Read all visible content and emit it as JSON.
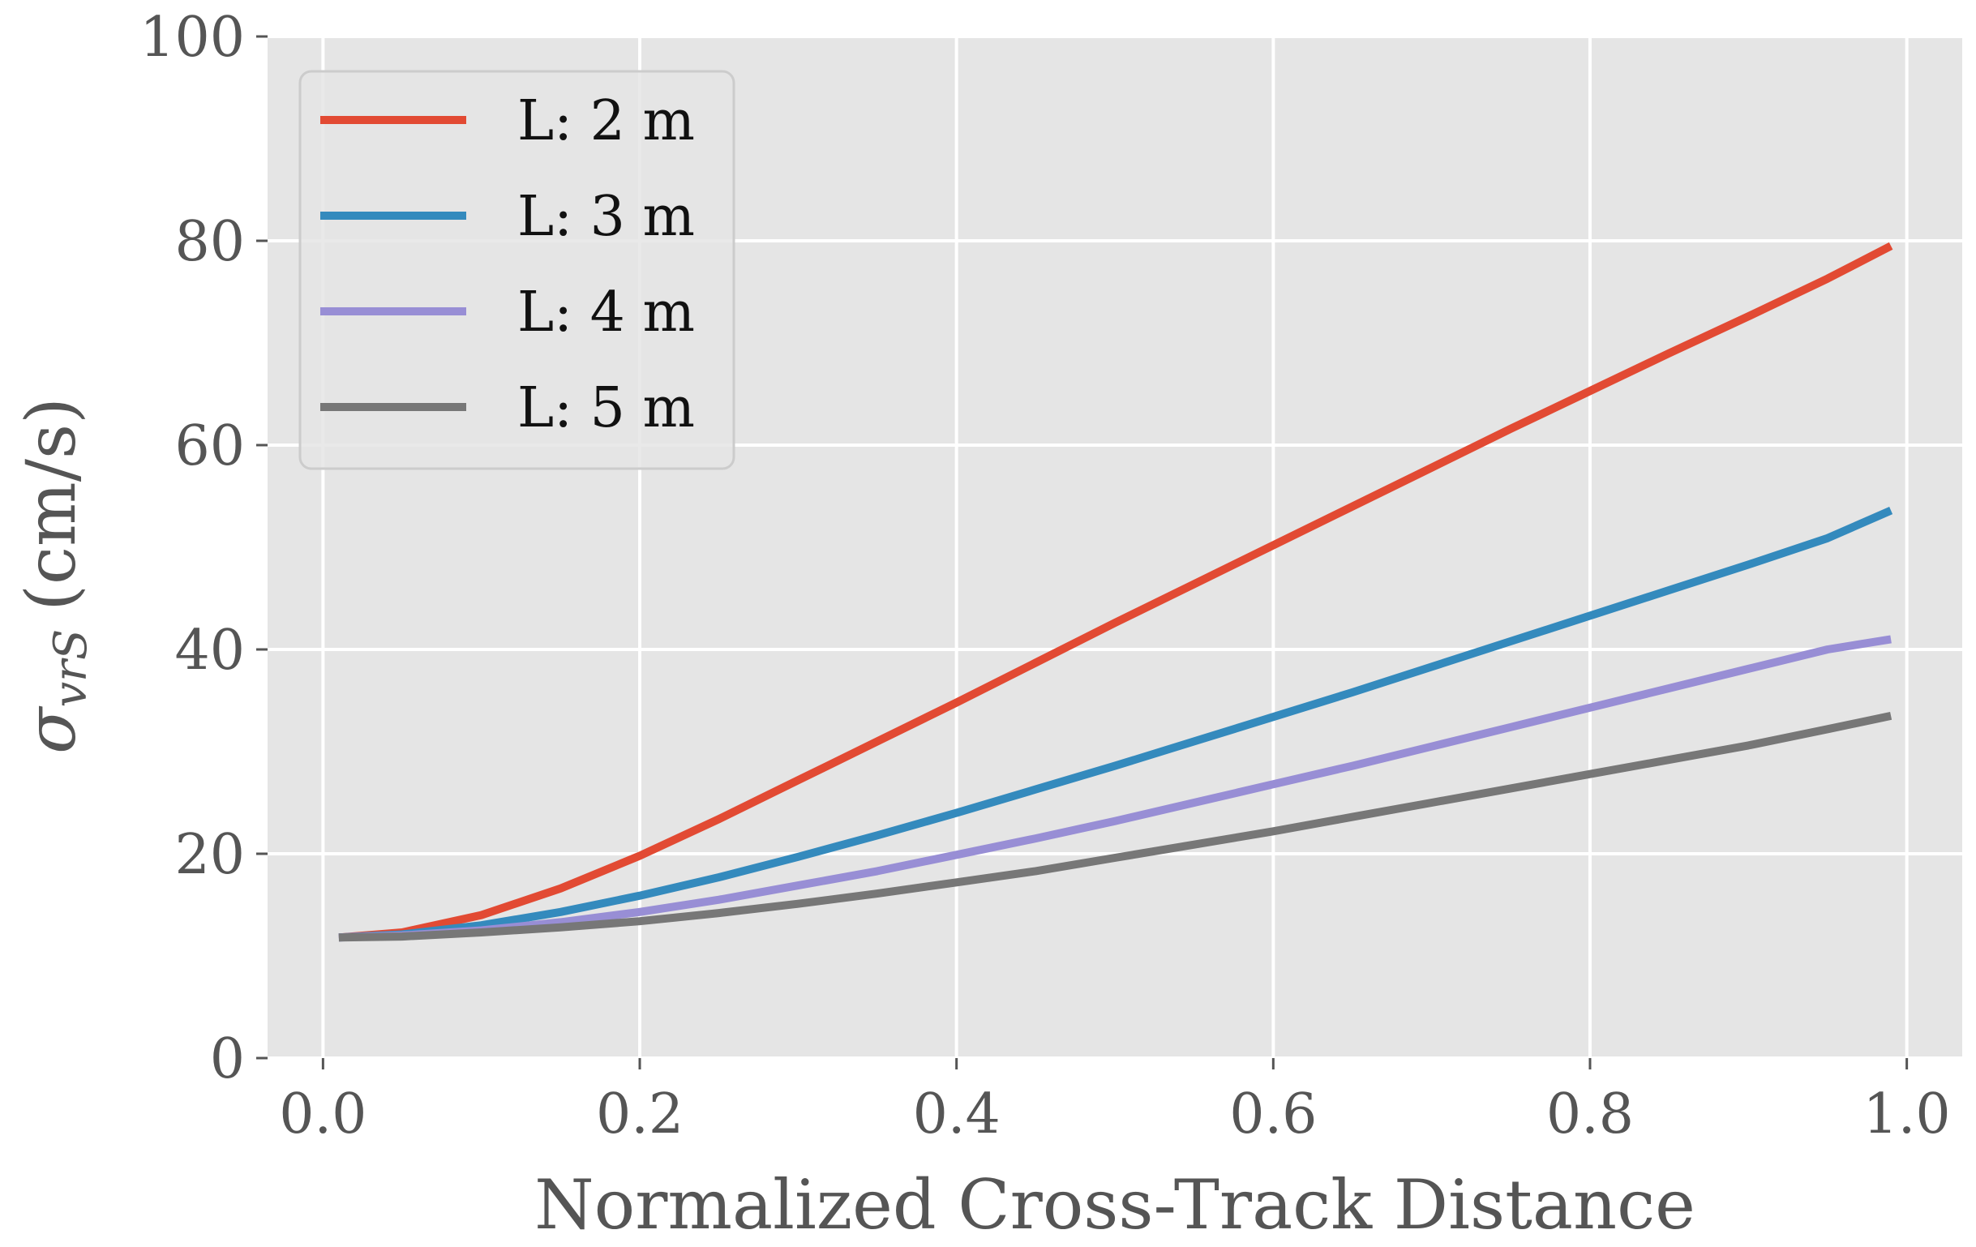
{
  "chart_data": {
    "type": "line",
    "title": "",
    "xlabel": "Normalized Cross-Track Distance",
    "ylabel": {
      "symbol": "σ",
      "subscript": "vrS",
      "unit": "(cm/s)"
    },
    "xlim": [
      -0.035,
      1.035
    ],
    "ylim": [
      0,
      100
    ],
    "xticks": [
      0.0,
      0.2,
      0.4,
      0.6,
      0.8,
      1.0
    ],
    "xtick_labels": [
      "0.0",
      "0.2",
      "0.4",
      "0.6",
      "0.8",
      "1.0"
    ],
    "yticks": [
      0,
      20,
      40,
      60,
      80,
      100
    ],
    "ytick_labels": [
      "0",
      "20",
      "40",
      "60",
      "80",
      "100"
    ],
    "grid": true,
    "legend_position": "top-left",
    "x": [
      0.01,
      0.05,
      0.1,
      0.15,
      0.2,
      0.25,
      0.3,
      0.35,
      0.4,
      0.45,
      0.5,
      0.55,
      0.6,
      0.65,
      0.7,
      0.75,
      0.8,
      0.85,
      0.9,
      0.95,
      0.99
    ],
    "series": [
      {
        "name": "L: 2 m",
        "color": "#e24a33",
        "values": [
          11.8,
          12.3,
          14.0,
          16.6,
          19.8,
          23.4,
          27.2,
          31.0,
          34.8,
          38.7,
          42.6,
          46.4,
          50.2,
          54.0,
          57.8,
          61.6,
          65.3,
          69.0,
          72.6,
          76.3,
          79.5
        ]
      },
      {
        "name": "L: 3 m",
        "color": "#348abd",
        "values": [
          11.8,
          12.1,
          13.0,
          14.3,
          15.9,
          17.7,
          19.7,
          21.8,
          24.0,
          26.3,
          28.6,
          31.0,
          33.4,
          35.8,
          38.3,
          40.8,
          43.3,
          45.8,
          48.3,
          50.9,
          53.6
        ]
      },
      {
        "name": "L: 4 m",
        "color": "#988ed5",
        "values": [
          11.8,
          12.0,
          12.5,
          13.3,
          14.3,
          15.5,
          16.9,
          18.3,
          19.9,
          21.5,
          23.2,
          25.0,
          26.8,
          28.6,
          30.5,
          32.4,
          34.3,
          36.2,
          38.1,
          40.0,
          41.0
        ]
      },
      {
        "name": "L: 5 m",
        "color": "#777777",
        "values": [
          11.8,
          11.9,
          12.3,
          12.8,
          13.4,
          14.2,
          15.1,
          16.1,
          17.2,
          18.3,
          19.6,
          20.9,
          22.2,
          23.6,
          25.0,
          26.4,
          27.8,
          29.2,
          30.6,
          32.2,
          33.5
        ]
      }
    ]
  }
}
